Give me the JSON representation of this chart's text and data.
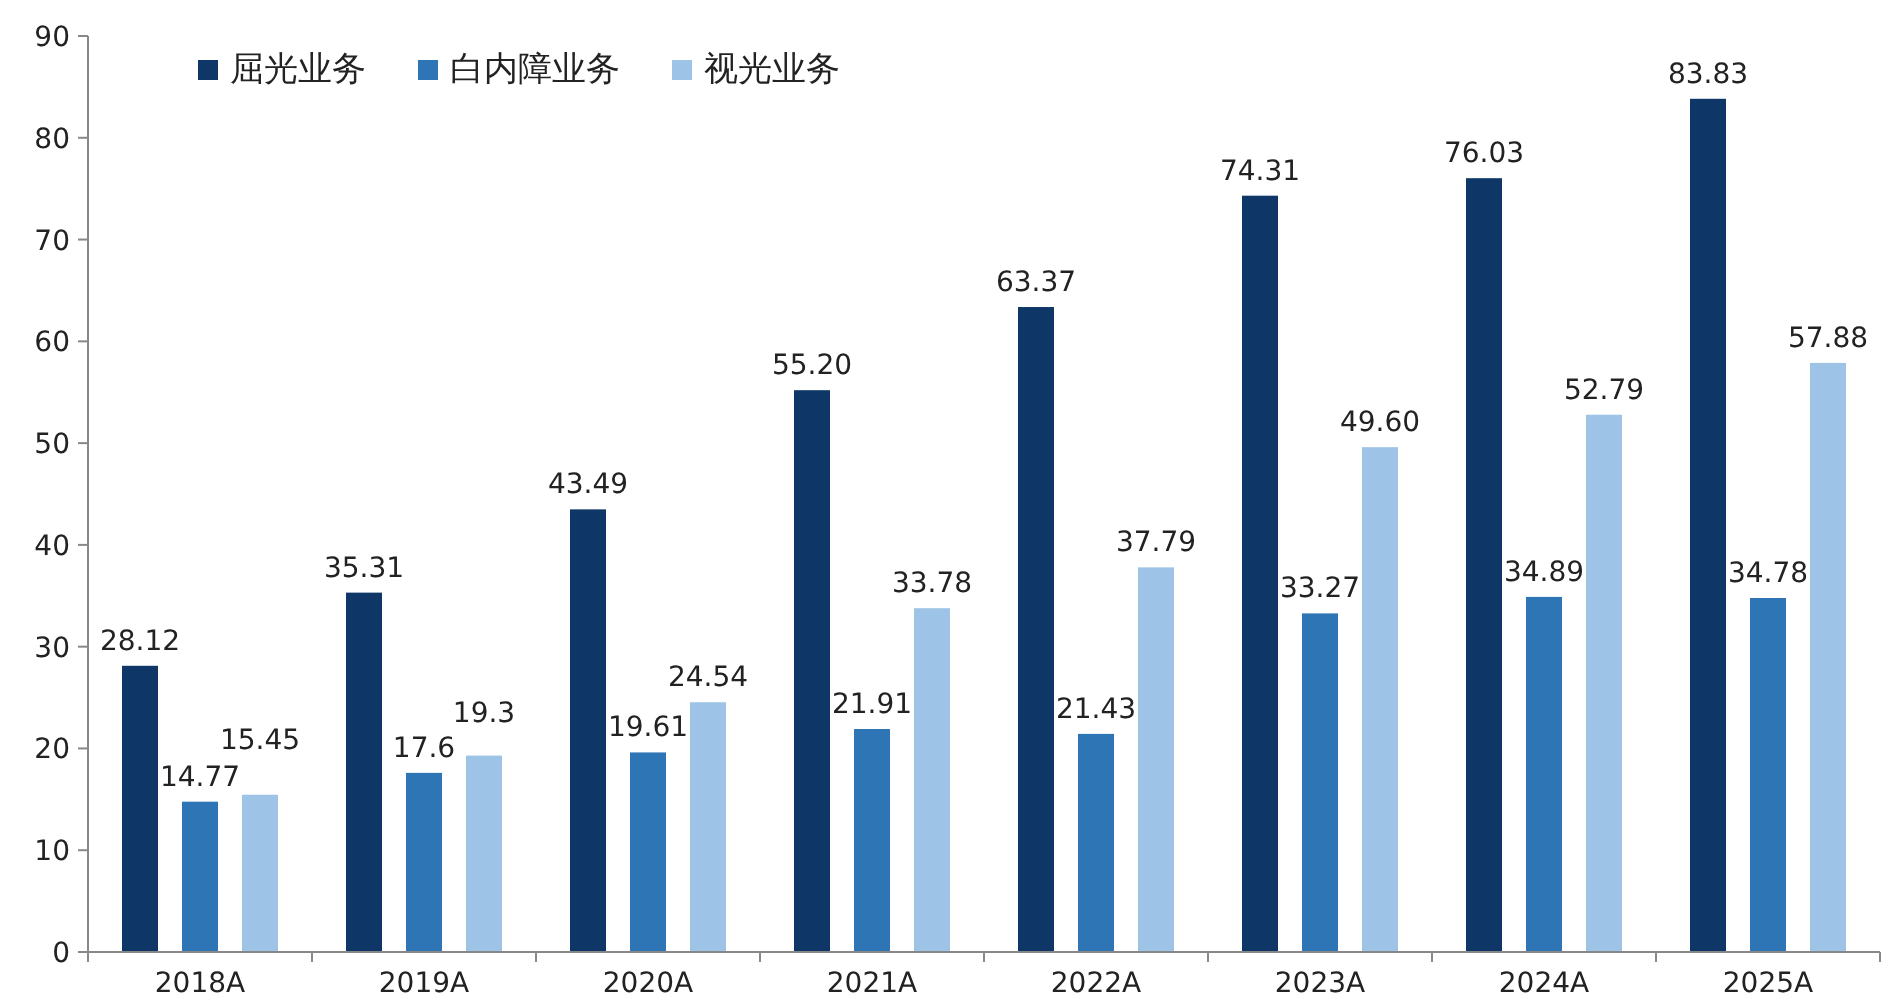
{
  "chart_data": {
    "type": "bar",
    "categories": [
      "2018A",
      "2019A",
      "2020A",
      "2021A",
      "2022A",
      "2023A",
      "2024A",
      "2025A"
    ],
    "series": [
      {
        "name": "屈光业务",
        "color": "#0e3666",
        "values": [
          28.12,
          35.31,
          43.49,
          55.2,
          63.37,
          74.31,
          76.03,
          83.83
        ],
        "value_labels": [
          "28.12",
          "35.31",
          "43.49",
          "55.20",
          "63.37",
          "74.31",
          "76.03",
          "83.83"
        ]
      },
      {
        "name": "白内障业务",
        "color": "#2e75b6",
        "values": [
          14.77,
          17.6,
          19.61,
          21.91,
          21.43,
          33.27,
          34.89,
          34.78
        ],
        "value_labels": [
          "14.77",
          "17.6",
          "19.61",
          "21.91",
          "21.43",
          "33.27",
          "34.89",
          "34.78"
        ]
      },
      {
        "name": "视光业务",
        "color": "#9dc3e6",
        "values": [
          15.45,
          19.3,
          24.54,
          33.78,
          37.79,
          49.6,
          52.79,
          57.88
        ],
        "value_labels": [
          "15.45",
          "19.3",
          "24.54",
          "33.78",
          "37.79",
          "49.60",
          "52.79",
          "57.88"
        ]
      }
    ],
    "ylim": [
      0,
      90
    ],
    "yticks": [
      0,
      10,
      20,
      30,
      40,
      50,
      60,
      70,
      80,
      90
    ],
    "legend": "top left",
    "grid": false
  }
}
